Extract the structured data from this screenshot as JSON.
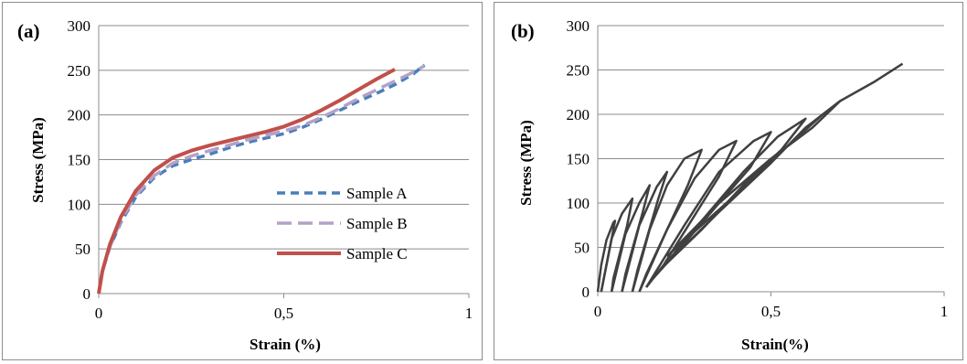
{
  "chart_data": [
    {
      "type": "line",
      "panel_label": "(a)",
      "xlabel": "Strain (%)",
      "ylabel": "Stress (MPa)",
      "xlim": [
        0,
        1
      ],
      "ylim": [
        0,
        300
      ],
      "x_ticks": [
        0,
        0.5,
        1
      ],
      "x_tick_labels": [
        "0",
        "0,5",
        "1"
      ],
      "y_ticks": [
        0,
        50,
        100,
        150,
        200,
        250,
        300
      ],
      "y_tick_labels": [
        "0",
        "50",
        "100",
        "150",
        "200",
        "250",
        "300"
      ],
      "grid": "horizontal",
      "legend": "right",
      "series": [
        {
          "name": "Sample A",
          "color": "#4a7ebb",
          "dash": "dashed",
          "points": [
            [
              0,
              0
            ],
            [
              0.01,
              25
            ],
            [
              0.03,
              52
            ],
            [
              0.06,
              80
            ],
            [
              0.1,
              108
            ],
            [
              0.15,
              130
            ],
            [
              0.2,
              143
            ],
            [
              0.25,
              150
            ],
            [
              0.3,
              156
            ],
            [
              0.35,
              163
            ],
            [
              0.4,
              169
            ],
            [
              0.45,
              174
            ],
            [
              0.5,
              179
            ],
            [
              0.55,
              186
            ],
            [
              0.6,
              195
            ],
            [
              0.65,
              205
            ],
            [
              0.7,
              215
            ],
            [
              0.75,
              224
            ],
            [
              0.8,
              234
            ],
            [
              0.85,
              246
            ],
            [
              0.88,
              256
            ]
          ]
        },
        {
          "name": "Sample B",
          "color": "#b3a2c7",
          "dash": "longdash",
          "points": [
            [
              0,
              0
            ],
            [
              0.01,
              25
            ],
            [
              0.03,
              52
            ],
            [
              0.06,
              82
            ],
            [
              0.1,
              110
            ],
            [
              0.15,
              132
            ],
            [
              0.2,
              146
            ],
            [
              0.25,
              154
            ],
            [
              0.3,
              160
            ],
            [
              0.35,
              166
            ],
            [
              0.4,
              172
            ],
            [
              0.45,
              177
            ],
            [
              0.5,
              182
            ],
            [
              0.55,
              188
            ],
            [
              0.6,
              197
            ],
            [
              0.65,
              207
            ],
            [
              0.7,
              218
            ],
            [
              0.75,
              228
            ],
            [
              0.8,
              238
            ],
            [
              0.85,
              248
            ],
            [
              0.88,
              255
            ]
          ]
        },
        {
          "name": "Sample C",
          "color": "#c0504d",
          "dash": "solid",
          "points": [
            [
              0,
              0
            ],
            [
              0.01,
              25
            ],
            [
              0.03,
              55
            ],
            [
              0.06,
              86
            ],
            [
              0.1,
              115
            ],
            [
              0.15,
              138
            ],
            [
              0.2,
              152
            ],
            [
              0.25,
              160
            ],
            [
              0.3,
              166
            ],
            [
              0.35,
              171
            ],
            [
              0.4,
              176
            ],
            [
              0.45,
              181
            ],
            [
              0.5,
              187
            ],
            [
              0.55,
              195
            ],
            [
              0.6,
              205
            ],
            [
              0.65,
              216
            ],
            [
              0.7,
              228
            ],
            [
              0.75,
              240
            ],
            [
              0.8,
              251
            ]
          ]
        }
      ]
    },
    {
      "type": "line",
      "panel_label": "(b)",
      "xlabel": "Strain(%)",
      "ylabel": "Stress (MPa)",
      "xlim": [
        0,
        1
      ],
      "ylim": [
        0,
        300
      ],
      "x_ticks": [
        0,
        0.5,
        1
      ],
      "x_tick_labels": [
        "0",
        "0,5",
        "1"
      ],
      "y_ticks": [
        0,
        50,
        100,
        150,
        200,
        250,
        300
      ],
      "y_tick_labels": [
        "0",
        "50",
        "100",
        "150",
        "200",
        "250",
        "300"
      ],
      "grid": "horizontal",
      "color": "#404040",
      "series": [
        {
          "points": [
            [
              0,
              0
            ],
            [
              0.01,
              30
            ],
            [
              0.025,
              58
            ],
            [
              0.045,
              78
            ],
            [
              0.05,
              80
            ],
            [
              0.04,
              60
            ],
            [
              0.03,
              40
            ],
            [
              0.02,
              20
            ],
            [
              0.01,
              0
            ]
          ]
        },
        {
          "points": [
            [
              0.01,
              0
            ],
            [
              0.04,
              60
            ],
            [
              0.07,
              88
            ],
            [
              0.1,
              105
            ],
            [
              0.085,
              75
            ],
            [
              0.065,
              45
            ],
            [
              0.045,
              15
            ],
            [
              0.04,
              0
            ]
          ]
        },
        {
          "points": [
            [
              0.04,
              0
            ],
            [
              0.08,
              65
            ],
            [
              0.12,
              100
            ],
            [
              0.15,
              120
            ],
            [
              0.13,
              90
            ],
            [
              0.105,
              55
            ],
            [
              0.08,
              20
            ],
            [
              0.07,
              0
            ]
          ]
        },
        {
          "points": [
            [
              0.07,
              0
            ],
            [
              0.12,
              75
            ],
            [
              0.17,
              118
            ],
            [
              0.2,
              135
            ],
            [
              0.175,
              105
            ],
            [
              0.145,
              65
            ],
            [
              0.115,
              25
            ],
            [
              0.1,
              0
            ]
          ]
        },
        {
          "points": [
            [
              0.1,
              0
            ],
            [
              0.15,
              70
            ],
            [
              0.2,
              120
            ],
            [
              0.25,
              150
            ],
            [
              0.3,
              160
            ],
            [
              0.26,
              120
            ],
            [
              0.2,
              70
            ],
            [
              0.14,
              20
            ],
            [
              0.12,
              0
            ]
          ]
        },
        {
          "points": [
            [
              0.12,
              0
            ],
            [
              0.2,
              70
            ],
            [
              0.28,
              128
            ],
            [
              0.35,
              160
            ],
            [
              0.4,
              170
            ],
            [
              0.35,
              130
            ],
            [
              0.27,
              80
            ],
            [
              0.19,
              30
            ],
            [
              0.14,
              5
            ]
          ]
        },
        {
          "points": [
            [
              0.14,
              5
            ],
            [
              0.25,
              75
            ],
            [
              0.35,
              135
            ],
            [
              0.45,
              170
            ],
            [
              0.5,
              180
            ],
            [
              0.44,
              140
            ],
            [
              0.35,
              100
            ],
            [
              0.24,
              50
            ],
            [
              0.16,
              15
            ]
          ]
        },
        {
          "points": [
            [
              0.16,
              15
            ],
            [
              0.3,
              80
            ],
            [
              0.42,
              135
            ],
            [
              0.52,
              175
            ],
            [
              0.6,
              195
            ],
            [
              0.53,
              160
            ],
            [
              0.42,
              120
            ],
            [
              0.3,
              70
            ],
            [
              0.18,
              25
            ]
          ]
        },
        {
          "points": [
            [
              0.18,
              25
            ],
            [
              0.35,
              90
            ],
            [
              0.5,
              145
            ],
            [
              0.6,
              185
            ],
            [
              0.7,
              215
            ],
            [
              0.62,
              185
            ],
            [
              0.5,
              150
            ],
            [
              0.35,
              100
            ],
            [
              0.2,
              40
            ]
          ]
        },
        {
          "points": [
            [
              0.2,
              40
            ],
            [
              0.4,
              110
            ],
            [
              0.55,
              165
            ],
            [
              0.65,
              200
            ],
            [
              0.7,
              215
            ],
            [
              0.8,
              237
            ],
            [
              0.88,
              257
            ]
          ]
        }
      ]
    }
  ]
}
